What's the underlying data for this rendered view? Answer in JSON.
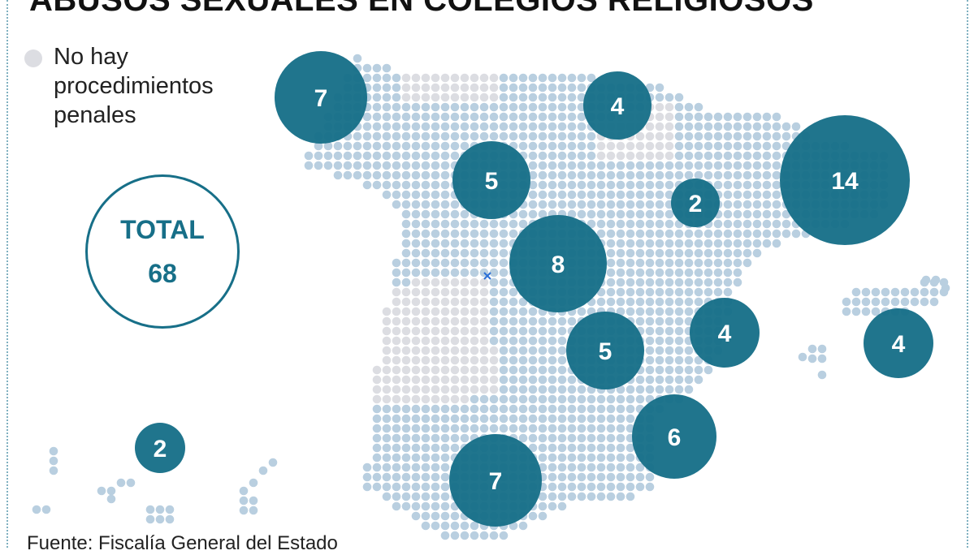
{
  "title": "ABUSOS SEXUALES EN COLEGIOS RELIGIOSOS",
  "legend": {
    "label": "No hay procedimientos penales",
    "color": "#dcdde2"
  },
  "total": {
    "label": "TOTAL",
    "value": "68"
  },
  "source": "Fuente: Fiscalía General del Estado",
  "colors": {
    "bubble": "#176f88",
    "dots": "#b9cfe0",
    "no_data_dots": "#dcdde2",
    "marker": "#2a6fd6"
  },
  "bubbles": [
    {
      "value": 7
    },
    {
      "value": 4
    },
    {
      "value": 5
    },
    {
      "value": 2
    },
    {
      "value": 14
    },
    {
      "value": 8
    },
    {
      "value": 5
    },
    {
      "value": 4
    },
    {
      "value": 4
    },
    {
      "value": 6
    },
    {
      "value": 7
    },
    {
      "value": 2
    }
  ]
}
